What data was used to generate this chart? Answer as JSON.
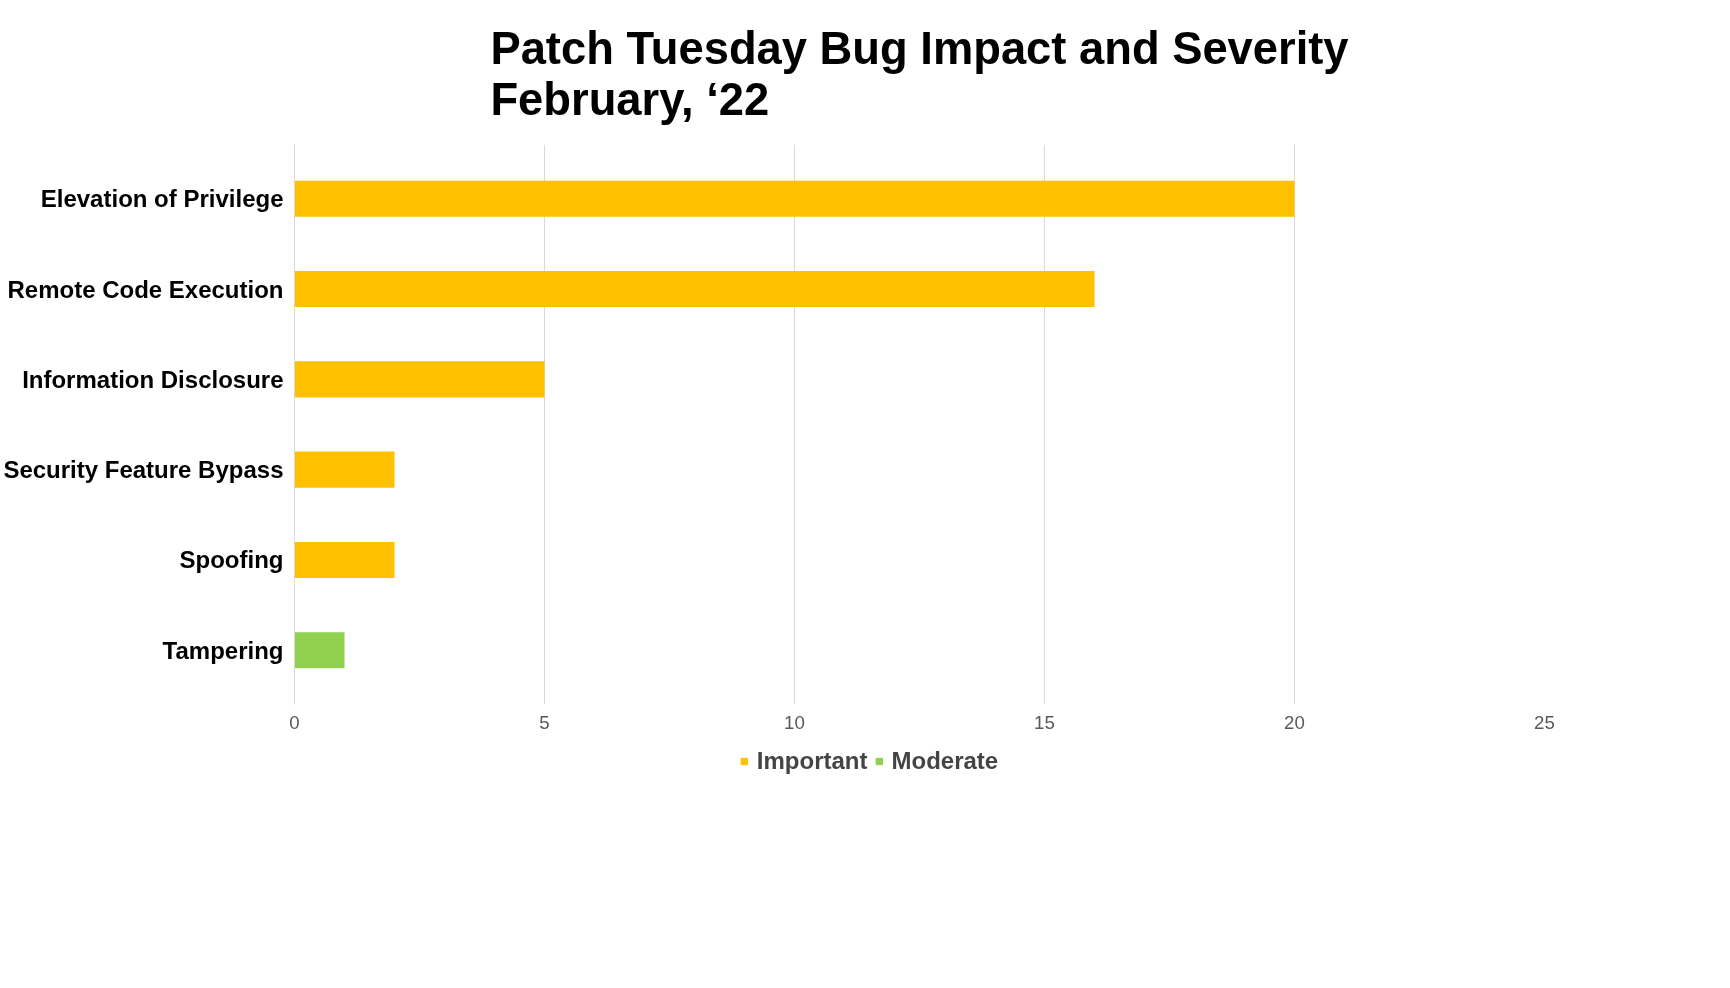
{
  "chart_data": {
    "type": "bar",
    "orientation": "horizontal",
    "stacked": true,
    "title": "Patch Tuesday Bug Impact and Severity\nFebruary, ‘22",
    "categories": [
      "Elevation of Privilege",
      "Remote Code Execution",
      "Information Disclosure",
      "Security Feature Bypass",
      "Spoofing",
      "Tampering"
    ],
    "series": [
      {
        "name": "Important",
        "color": "#ffc000",
        "values": [
          20,
          16,
          5,
          2,
          2,
          null
        ]
      },
      {
        "name": "Moderate",
        "color": "#92d050",
        "values": [
          null,
          null,
          null,
          null,
          null,
          1
        ]
      }
    ],
    "xlim": [
      0,
      25
    ],
    "xticks": [
      0,
      5,
      10,
      15,
      20,
      25
    ],
    "grid": "x",
    "legend": "bottom"
  }
}
